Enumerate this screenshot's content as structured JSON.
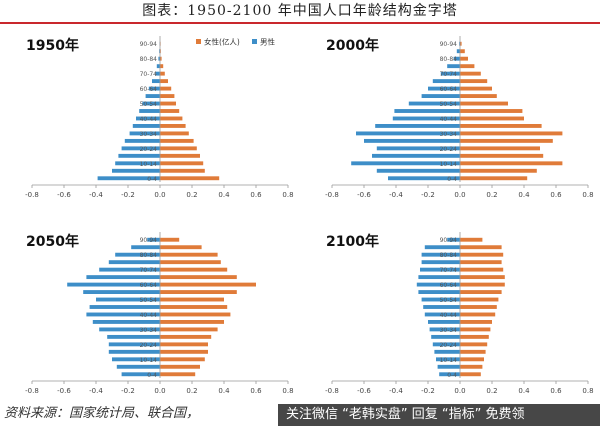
{
  "title": "图表：1950-2100 年中国人口年龄结构金字塔",
  "source": "资料来源：国家统计局、联合国，",
  "watermark": "关注微信 “老韩实盘” 回复 “指标” 免费领",
  "colors": {
    "female": "#e07b39",
    "male": "#3d8ec8",
    "axis": "#999999",
    "title_rule": "#c9282d"
  },
  "chart_data": [
    {
      "type": "bar",
      "title": "1950年",
      "legend": [
        {
          "name": "女性(亿人)",
          "color": "#e07b39"
        },
        {
          "name": "男性",
          "color": "#3d8ec8"
        }
      ],
      "legend_position": "top",
      "categories": [
        "0-4",
        "5-9",
        "10-14",
        "15-19",
        "20-24",
        "25-29",
        "30-34",
        "35-39",
        "40-44",
        "45-49",
        "50-54",
        "55-59",
        "60-64",
        "65-69",
        "70-74",
        "75-79",
        "80-84",
        "85-89",
        "90-94"
      ],
      "category_labels": [
        "0-4",
        "",
        "10-14",
        "",
        "20-24",
        "",
        "30-34",
        "",
        "40-44",
        "",
        "50-54",
        "",
        "60-64",
        "",
        "70-74",
        "",
        "80-84",
        "",
        "90-94"
      ],
      "series": [
        {
          "name": "男性",
          "values": [
            -0.39,
            -0.3,
            -0.28,
            -0.26,
            -0.24,
            -0.22,
            -0.19,
            -0.17,
            -0.15,
            -0.13,
            -0.11,
            -0.09,
            -0.07,
            -0.05,
            -0.03,
            -0.02,
            -0.01,
            -0.005,
            -0.002
          ]
        },
        {
          "name": "女性(亿人)",
          "values": [
            0.37,
            0.28,
            0.27,
            0.25,
            0.23,
            0.21,
            0.18,
            0.16,
            0.14,
            0.12,
            0.1,
            0.09,
            0.07,
            0.05,
            0.03,
            0.02,
            0.01,
            0.005,
            0.002
          ]
        }
      ],
      "xlim": [
        -0.8,
        0.8
      ],
      "xticks": [
        "-0.8",
        "-0.6",
        "-0.4",
        "-0.2",
        "0.0",
        "0.2",
        "0.4",
        "0.6",
        "0.8"
      ]
    },
    {
      "type": "bar",
      "title": "2000年",
      "legend": [],
      "categories": [
        "0-4",
        "5-9",
        "10-14",
        "15-19",
        "20-24",
        "25-29",
        "30-34",
        "35-39",
        "40-44",
        "45-49",
        "50-54",
        "55-59",
        "60-64",
        "65-69",
        "70-74",
        "75-79",
        "80-84",
        "85-89",
        "90-94"
      ],
      "category_labels": [
        "0-4",
        "",
        "10-14",
        "",
        "20-24",
        "",
        "30-34",
        "",
        "40-44",
        "",
        "50-54",
        "",
        "60-64",
        "",
        "70-74",
        "",
        "80-84",
        "",
        "90-94"
      ],
      "series": [
        {
          "name": "男性",
          "values": [
            -0.45,
            -0.52,
            -0.68,
            -0.55,
            -0.52,
            -0.6,
            -0.65,
            -0.53,
            -0.42,
            -0.41,
            -0.32,
            -0.24,
            -0.2,
            -0.17,
            -0.12,
            -0.08,
            -0.04,
            -0.02,
            -0.005
          ]
        },
        {
          "name": "女性(亿人)",
          "values": [
            0.42,
            0.48,
            0.64,
            0.52,
            0.5,
            0.58,
            0.64,
            0.51,
            0.4,
            0.39,
            0.3,
            0.23,
            0.2,
            0.17,
            0.13,
            0.09,
            0.05,
            0.03,
            0.01
          ]
        }
      ],
      "xlim": [
        -0.8,
        0.8
      ],
      "xticks": [
        "-0.8",
        "-0.6",
        "-0.4",
        "-0.2",
        "0.0",
        "0.2",
        "0.4",
        "0.6",
        "0.8"
      ]
    },
    {
      "type": "bar",
      "title": "2050年",
      "legend": [],
      "categories": [
        "0-4",
        "5-9",
        "10-14",
        "15-19",
        "20-24",
        "25-29",
        "30-34",
        "35-39",
        "40-44",
        "45-49",
        "50-54",
        "55-59",
        "60-64",
        "65-69",
        "70-74",
        "75-79",
        "80-84",
        "85-89",
        "90-94"
      ],
      "category_labels": [
        "0-4",
        "",
        "10-14",
        "",
        "20-24",
        "",
        "30-34",
        "",
        "40-44",
        "",
        "50-54",
        "",
        "60-64",
        "",
        "70-74",
        "",
        "80-84",
        "",
        "90-94"
      ],
      "series": [
        {
          "name": "男性",
          "values": [
            -0.24,
            -0.27,
            -0.3,
            -0.32,
            -0.32,
            -0.33,
            -0.38,
            -0.42,
            -0.46,
            -0.44,
            -0.4,
            -0.48,
            -0.58,
            -0.46,
            -0.38,
            -0.32,
            -0.28,
            -0.18,
            -0.08
          ]
        },
        {
          "name": "女性(亿人)",
          "values": [
            0.22,
            0.25,
            0.28,
            0.3,
            0.3,
            0.32,
            0.36,
            0.4,
            0.44,
            0.42,
            0.4,
            0.48,
            0.6,
            0.48,
            0.42,
            0.38,
            0.36,
            0.26,
            0.12
          ]
        }
      ],
      "xlim": [
        -0.8,
        0.8
      ],
      "xticks": [
        "-0.8",
        "-0.6",
        "-0.4",
        "-0.2",
        "0.0",
        "0.2",
        "0.4",
        "0.6",
        "0.8"
      ]
    },
    {
      "type": "bar",
      "title": "2100年",
      "legend": [],
      "categories": [
        "0-4",
        "5-9",
        "10-14",
        "15-19",
        "20-24",
        "25-29",
        "30-34",
        "35-39",
        "40-44",
        "45-49",
        "50-54",
        "55-59",
        "60-64",
        "65-69",
        "70-74",
        "75-79",
        "80-84",
        "85-89",
        "90-94"
      ],
      "category_labels": [
        "0-4",
        "",
        "10-14",
        "",
        "20-24",
        "",
        "30-34",
        "",
        "40-44",
        "",
        "50-54",
        "",
        "60-64",
        "",
        "70-74",
        "",
        "80-84",
        "",
        "90-94"
      ],
      "series": [
        {
          "name": "男性",
          "values": [
            -0.13,
            -0.14,
            -0.15,
            -0.16,
            -0.17,
            -0.18,
            -0.19,
            -0.2,
            -0.22,
            -0.23,
            -0.24,
            -0.26,
            -0.27,
            -0.26,
            -0.25,
            -0.24,
            -0.24,
            -0.22,
            -0.08
          ]
        },
        {
          "name": "女性(亿人)",
          "values": [
            0.13,
            0.14,
            0.15,
            0.16,
            0.17,
            0.18,
            0.19,
            0.2,
            0.22,
            0.23,
            0.24,
            0.26,
            0.28,
            0.28,
            0.27,
            0.26,
            0.27,
            0.26,
            0.14
          ]
        }
      ],
      "xlim": [
        -0.8,
        0.8
      ],
      "xticks": [
        "-0.8",
        "-0.6",
        "-0.4",
        "-0.2",
        "0.0",
        "0.2",
        "0.4",
        "0.6",
        "0.8"
      ]
    }
  ]
}
